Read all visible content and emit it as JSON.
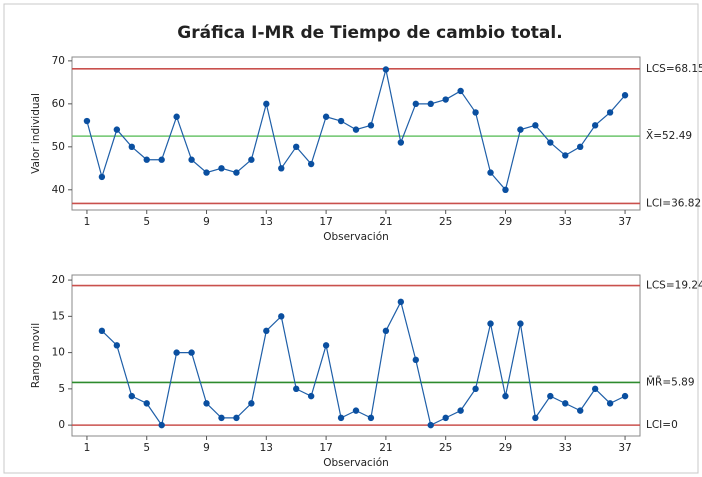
{
  "title": "Gráfica I-MR de Tiempo de cambio total.",
  "chart_data": [
    {
      "type": "line",
      "ylabel": "Valor individual",
      "xlabel": "Observación",
      "x": [
        1,
        2,
        3,
        4,
        5,
        6,
        7,
        8,
        9,
        10,
        11,
        12,
        13,
        14,
        15,
        16,
        17,
        18,
        19,
        20,
        21,
        22,
        23,
        24,
        25,
        26,
        27,
        28,
        29,
        30,
        31,
        32,
        33,
        34,
        35,
        36,
        37
      ],
      "series": [
        {
          "color": "#1f5fa8",
          "values": [
            56,
            43,
            54,
            50,
            47,
            47,
            57,
            47,
            44,
            45,
            44,
            47,
            60,
            45,
            50,
            46,
            57,
            56,
            54,
            55,
            68,
            51,
            60,
            60,
            61,
            63,
            58,
            44,
            40,
            54,
            55,
            51,
            48,
            50,
            55,
            58,
            62
          ]
        }
      ],
      "xlim": [
        0,
        38
      ],
      "xticks": [
        1,
        5,
        9,
        13,
        17,
        21,
        25,
        29,
        33,
        37
      ],
      "ylim": [
        35.3,
        70.9
      ],
      "yticks": [
        40,
        50,
        60,
        70
      ],
      "limits": [
        {
          "value": 68.15,
          "label": "LCS=68.15",
          "color": "#c9504d"
        },
        {
          "value": 52.49,
          "label": "X̄=52.49",
          "color": "#6cc46c"
        },
        {
          "value": 36.82,
          "label": "LCI=36.82",
          "color": "#c9504d"
        }
      ]
    },
    {
      "type": "line",
      "ylabel": "Rango movil",
      "xlabel": "Observación",
      "x": [
        1,
        2,
        3,
        4,
        5,
        6,
        7,
        8,
        9,
        10,
        11,
        12,
        13,
        14,
        15,
        16,
        17,
        18,
        19,
        20,
        21,
        22,
        23,
        24,
        25,
        26,
        27,
        28,
        29,
        30,
        31,
        32,
        33,
        34,
        35,
        36,
        37
      ],
      "series": [
        {
          "color": "#1f5fa8",
          "values": [
            null,
            13,
            11,
            4,
            3,
            0,
            10,
            10,
            3,
            1,
            1,
            3,
            13,
            15,
            5,
            4,
            11,
            1,
            2,
            1,
            13,
            17,
            9,
            0,
            1,
            2,
            5,
            14,
            4,
            14,
            1,
            4,
            3,
            2,
            5,
            3,
            4
          ]
        }
      ],
      "xlim": [
        0,
        38
      ],
      "xticks": [
        1,
        5,
        9,
        13,
        17,
        21,
        25,
        29,
        33,
        37
      ],
      "ylim": [
        -1.5,
        20.7
      ],
      "yticks": [
        0,
        5,
        10,
        15,
        20
      ],
      "limits": [
        {
          "value": 19.24,
          "label": "LCS=19.24",
          "color": "#c9504d"
        },
        {
          "value": 5.89,
          "label": "M̄R̄=5.89",
          "color": "#2e8b2e"
        },
        {
          "value": 0,
          "label": "LCI=0",
          "color": "#c9504d"
        }
      ]
    }
  ]
}
